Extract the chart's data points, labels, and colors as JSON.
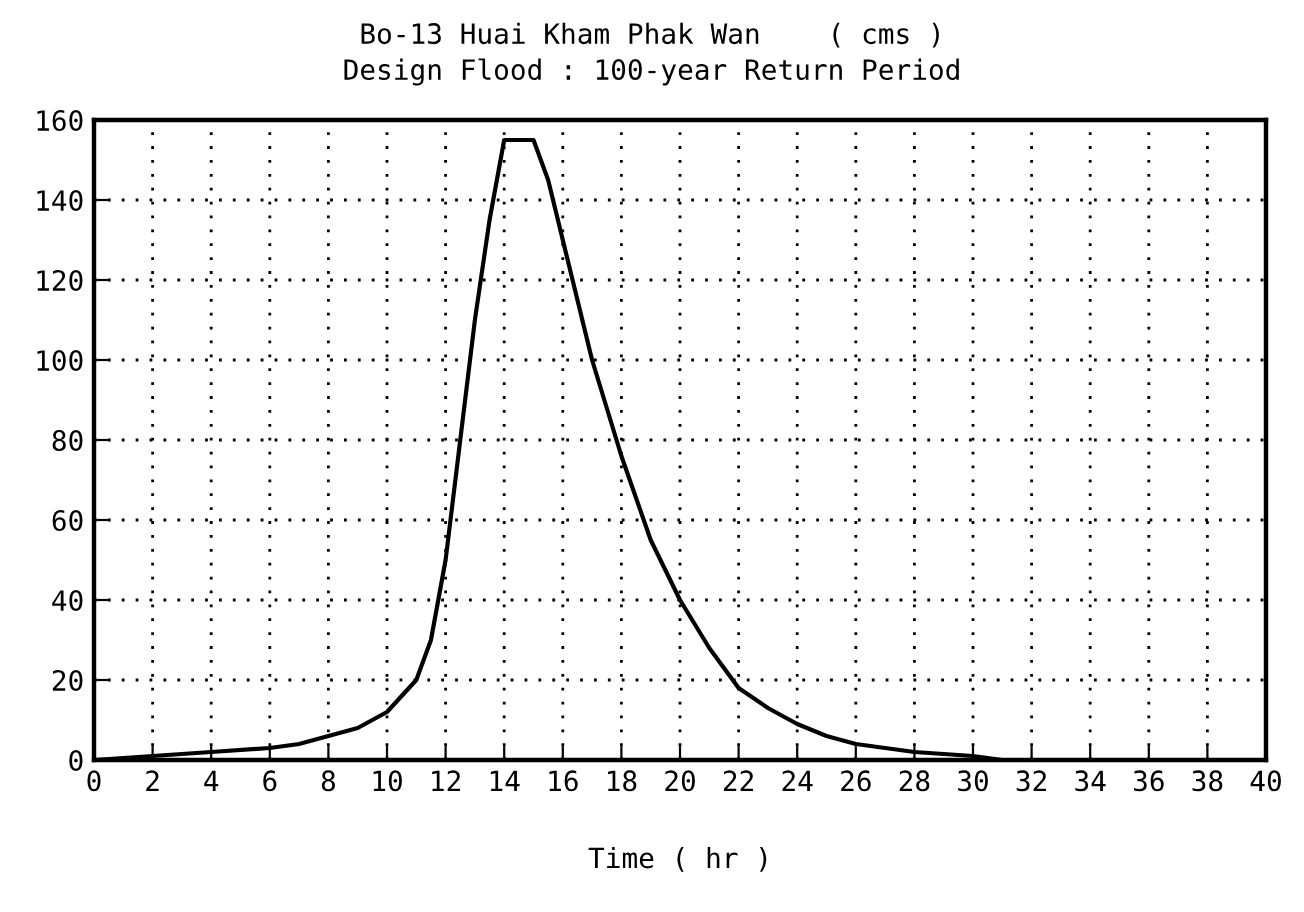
{
  "chart_data": {
    "type": "line",
    "title": "Bo-13 Huai Kham Phak Wan    ( cms )",
    "subtitle": "Design Flood : 100-year Return Period",
    "xlabel": "Time ( hr )",
    "x": [
      0,
      2,
      4,
      6,
      7,
      8,
      9,
      10,
      10.5,
      11,
      11.5,
      12,
      12.5,
      13,
      13.5,
      14,
      15,
      15.5,
      16,
      16.5,
      17,
      18,
      19,
      20,
      21,
      22,
      23,
      24,
      25,
      26,
      28,
      30,
      31,
      40
    ],
    "series": [
      {
        "color": "#000000",
        "values": [
          0,
          1,
          2,
          3,
          4,
          6,
          8,
          12,
          16,
          20,
          30,
          50,
          80,
          110,
          135,
          155,
          155,
          145,
          130,
          115,
          100,
          76,
          55,
          40,
          28,
          18,
          13,
          9,
          6,
          4,
          2,
          1,
          0,
          0
        ]
      }
    ],
    "xlim": [
      0,
      40
    ],
    "xticks": [
      0,
      2,
      4,
      6,
      8,
      10,
      12,
      14,
      16,
      18,
      20,
      22,
      24,
      26,
      28,
      30,
      32,
      34,
      36,
      38,
      40
    ],
    "ylim": [
      0,
      160
    ],
    "yticks": [
      0,
      20,
      40,
      60,
      80,
      100,
      120,
      140,
      160
    ],
    "grid": true,
    "line_style": "solid",
    "marker": "none"
  }
}
